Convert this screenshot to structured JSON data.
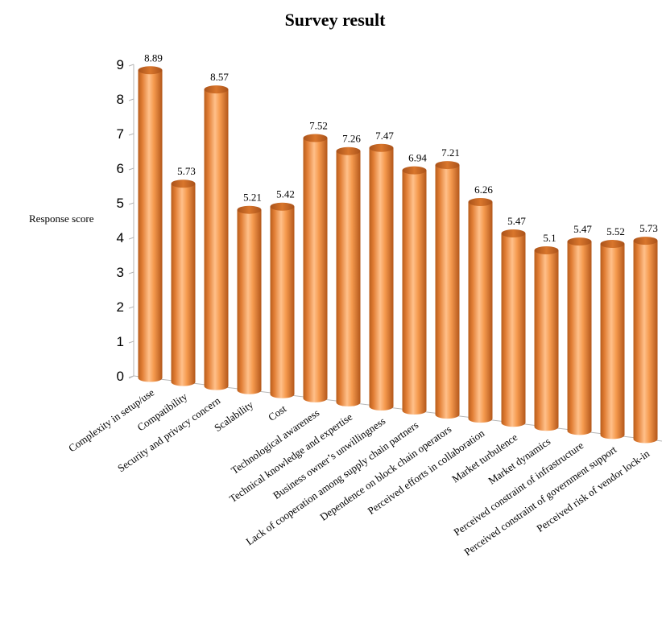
{
  "chart_data": {
    "type": "bar",
    "title": "Survey result",
    "ylabel": "Response score",
    "xlabel": "",
    "ylim": [
      0,
      9
    ],
    "yticks": [
      0,
      1,
      2,
      3,
      4,
      5,
      6,
      7,
      8,
      9
    ],
    "grid": false,
    "legend": "none",
    "style": "3d-cylinder",
    "bar_color": "#F59A4E",
    "categories": [
      "Complexity in setup/use",
      "Compatibility",
      "Security and privacy concern",
      "Scalability",
      "Cost",
      "Technological awareness",
      "Technical knowledge and expertise",
      "Business owner’s unwillingness",
      "Lack of cooperation among supply chain partners",
      "Dependence on block chain operators",
      "Perceived efforts in collaboration",
      "Market turbulence",
      "Market dynamics",
      "Perceived constraint of infrastructure",
      "Perceived constraint of government support",
      "Perceived risk of vendor lock-in"
    ],
    "values": [
      8.89,
      5.73,
      8.57,
      5.21,
      5.42,
      7.52,
      7.26,
      7.47,
      6.94,
      7.21,
      6.26,
      5.47,
      5.1,
      5.47,
      5.52,
      5.73
    ],
    "value_labels": [
      "8.89",
      "5.73",
      "8.57",
      "5.21",
      "5.42",
      "7.52",
      "7.26",
      "7.47",
      "6.94",
      "7.21",
      "6.26",
      "5.47",
      "5.1",
      "5.47",
      "5.52",
      "5.73"
    ]
  }
}
